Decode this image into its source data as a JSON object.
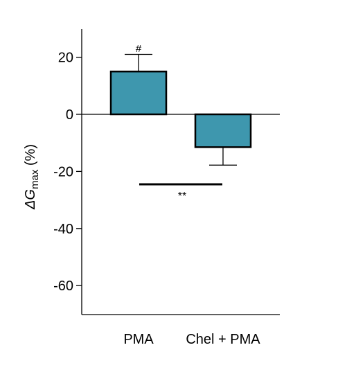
{
  "chart_data": {
    "type": "bar",
    "categories": [
      "PMA",
      "Chel + PMA"
    ],
    "values": [
      15,
      -11.5
    ],
    "errors": [
      6,
      6.3
    ],
    "bar_color": "#3e97ae",
    "ylabel_symbol": "ΔG",
    "ylabel_subscript": "max",
    "ylabel_unit": " (%)",
    "ylim": [
      -70,
      30
    ],
    "yticks": [
      20,
      0,
      -20,
      -40,
      -60
    ],
    "ytick_labels": [
      "20",
      "0",
      "-20",
      "-40",
      "-60"
    ],
    "grid": false,
    "annotations": {
      "bar_marker": "#",
      "significance": "**"
    }
  }
}
